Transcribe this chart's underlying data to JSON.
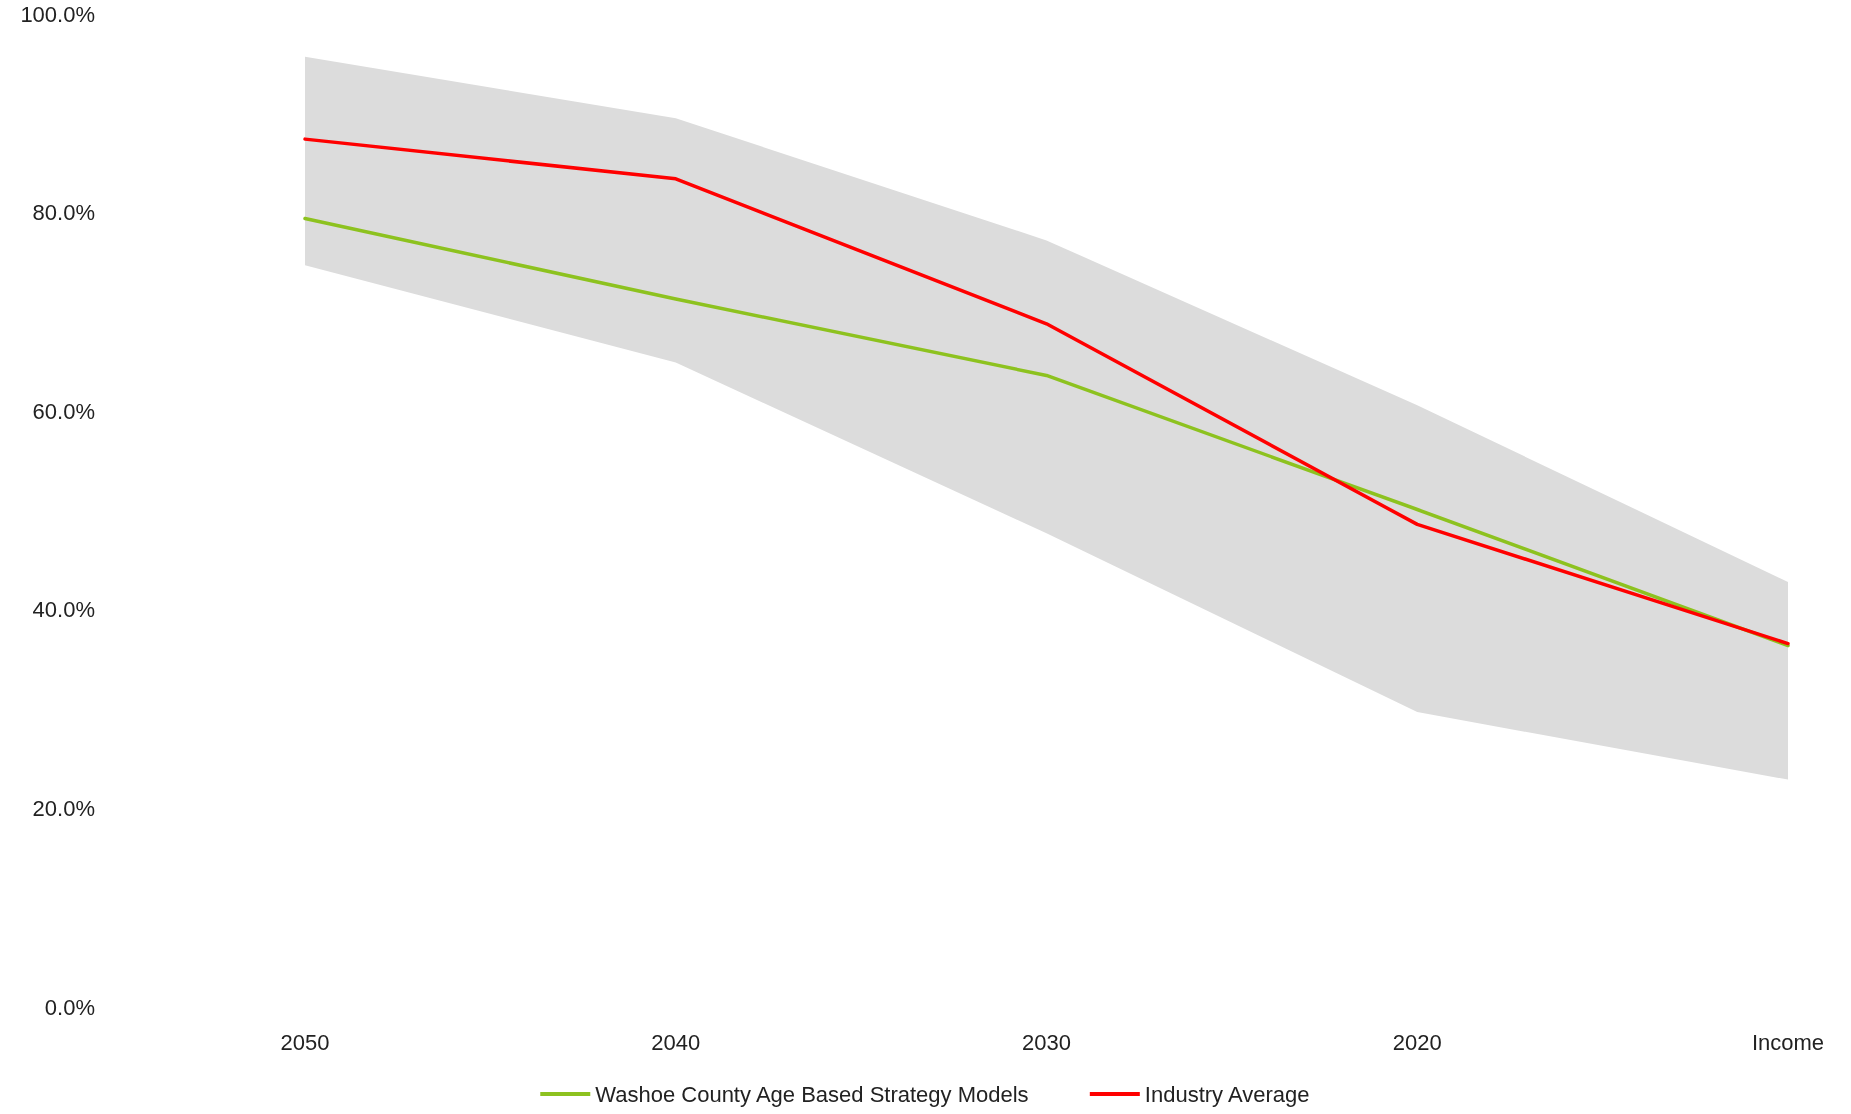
{
  "chart_data": {
    "type": "line",
    "categories": [
      "2050",
      "2040",
      "2030",
      "2020",
      "Income"
    ],
    "series": [
      {
        "name": "Washoe County Age Based Strategy Models",
        "color": "#8dc21f",
        "values": [
          79.4,
          71.3,
          63.6,
          50.1,
          36.4
        ],
        "lower": [
          74.7,
          64.9,
          47.7,
          29.7,
          22.9
        ],
        "upper": [
          95.7,
          89.5,
          77.2,
          60.6,
          42.8
        ]
      },
      {
        "name": "Industry Average",
        "color": "#ff0000",
        "values": [
          87.4,
          83.4,
          68.8,
          48.6,
          36.6
        ]
      }
    ],
    "ylim": [
      0,
      100
    ],
    "yticks": [
      {
        "value": 0,
        "label": "0.0%"
      },
      {
        "value": 20,
        "label": "20.0%"
      },
      {
        "value": 40,
        "label": "40.0%"
      },
      {
        "value": 60,
        "label": "60.0%"
      },
      {
        "value": 80,
        "label": "80.0%"
      },
      {
        "value": 100,
        "label": "100.0%"
      }
    ],
    "grid": false,
    "legend": "bottom",
    "marker": "none",
    "line_style": "solid"
  }
}
